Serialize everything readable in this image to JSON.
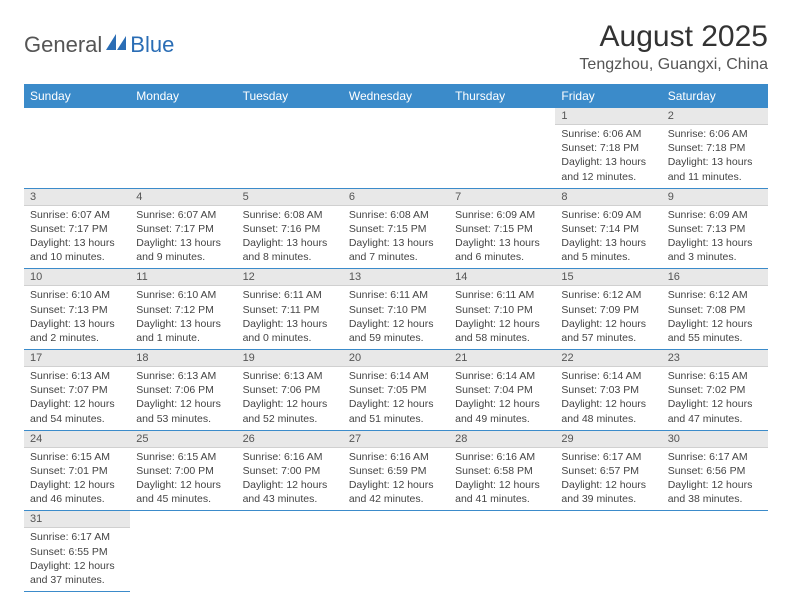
{
  "logo": {
    "part1": "General",
    "part2": "Blue"
  },
  "title": "August 2025",
  "location": "Tengzhou, Guangxi, China",
  "colors": {
    "header_bg": "#3b8bca",
    "header_text": "#ffffff",
    "daynum_bg": "#e8e8e8",
    "row_border": "#3b8bca",
    "logo_blue": "#2a6db5"
  },
  "weekdays": [
    "Sunday",
    "Monday",
    "Tuesday",
    "Wednesday",
    "Thursday",
    "Friday",
    "Saturday"
  ],
  "first_weekday_index": 5,
  "days": [
    {
      "n": 1,
      "sunrise": "6:06 AM",
      "sunset": "7:18 PM",
      "daylight": "13 hours and 12 minutes."
    },
    {
      "n": 2,
      "sunrise": "6:06 AM",
      "sunset": "7:18 PM",
      "daylight": "13 hours and 11 minutes."
    },
    {
      "n": 3,
      "sunrise": "6:07 AM",
      "sunset": "7:17 PM",
      "daylight": "13 hours and 10 minutes."
    },
    {
      "n": 4,
      "sunrise": "6:07 AM",
      "sunset": "7:17 PM",
      "daylight": "13 hours and 9 minutes."
    },
    {
      "n": 5,
      "sunrise": "6:08 AM",
      "sunset": "7:16 PM",
      "daylight": "13 hours and 8 minutes."
    },
    {
      "n": 6,
      "sunrise": "6:08 AM",
      "sunset": "7:15 PM",
      "daylight": "13 hours and 7 minutes."
    },
    {
      "n": 7,
      "sunrise": "6:09 AM",
      "sunset": "7:15 PM",
      "daylight": "13 hours and 6 minutes."
    },
    {
      "n": 8,
      "sunrise": "6:09 AM",
      "sunset": "7:14 PM",
      "daylight": "13 hours and 5 minutes."
    },
    {
      "n": 9,
      "sunrise": "6:09 AM",
      "sunset": "7:13 PM",
      "daylight": "13 hours and 3 minutes."
    },
    {
      "n": 10,
      "sunrise": "6:10 AM",
      "sunset": "7:13 PM",
      "daylight": "13 hours and 2 minutes."
    },
    {
      "n": 11,
      "sunrise": "6:10 AM",
      "sunset": "7:12 PM",
      "daylight": "13 hours and 1 minute."
    },
    {
      "n": 12,
      "sunrise": "6:11 AM",
      "sunset": "7:11 PM",
      "daylight": "13 hours and 0 minutes."
    },
    {
      "n": 13,
      "sunrise": "6:11 AM",
      "sunset": "7:10 PM",
      "daylight": "12 hours and 59 minutes."
    },
    {
      "n": 14,
      "sunrise": "6:11 AM",
      "sunset": "7:10 PM",
      "daylight": "12 hours and 58 minutes."
    },
    {
      "n": 15,
      "sunrise": "6:12 AM",
      "sunset": "7:09 PM",
      "daylight": "12 hours and 57 minutes."
    },
    {
      "n": 16,
      "sunrise": "6:12 AM",
      "sunset": "7:08 PM",
      "daylight": "12 hours and 55 minutes."
    },
    {
      "n": 17,
      "sunrise": "6:13 AM",
      "sunset": "7:07 PM",
      "daylight": "12 hours and 54 minutes."
    },
    {
      "n": 18,
      "sunrise": "6:13 AM",
      "sunset": "7:06 PM",
      "daylight": "12 hours and 53 minutes."
    },
    {
      "n": 19,
      "sunrise": "6:13 AM",
      "sunset": "7:06 PM",
      "daylight": "12 hours and 52 minutes."
    },
    {
      "n": 20,
      "sunrise": "6:14 AM",
      "sunset": "7:05 PM",
      "daylight": "12 hours and 51 minutes."
    },
    {
      "n": 21,
      "sunrise": "6:14 AM",
      "sunset": "7:04 PM",
      "daylight": "12 hours and 49 minutes."
    },
    {
      "n": 22,
      "sunrise": "6:14 AM",
      "sunset": "7:03 PM",
      "daylight": "12 hours and 48 minutes."
    },
    {
      "n": 23,
      "sunrise": "6:15 AM",
      "sunset": "7:02 PM",
      "daylight": "12 hours and 47 minutes."
    },
    {
      "n": 24,
      "sunrise": "6:15 AM",
      "sunset": "7:01 PM",
      "daylight": "12 hours and 46 minutes."
    },
    {
      "n": 25,
      "sunrise": "6:15 AM",
      "sunset": "7:00 PM",
      "daylight": "12 hours and 45 minutes."
    },
    {
      "n": 26,
      "sunrise": "6:16 AM",
      "sunset": "7:00 PM",
      "daylight": "12 hours and 43 minutes."
    },
    {
      "n": 27,
      "sunrise": "6:16 AM",
      "sunset": "6:59 PM",
      "daylight": "12 hours and 42 minutes."
    },
    {
      "n": 28,
      "sunrise": "6:16 AM",
      "sunset": "6:58 PM",
      "daylight": "12 hours and 41 minutes."
    },
    {
      "n": 29,
      "sunrise": "6:17 AM",
      "sunset": "6:57 PM",
      "daylight": "12 hours and 39 minutes."
    },
    {
      "n": 30,
      "sunrise": "6:17 AM",
      "sunset": "6:56 PM",
      "daylight": "12 hours and 38 minutes."
    },
    {
      "n": 31,
      "sunrise": "6:17 AM",
      "sunset": "6:55 PM",
      "daylight": "12 hours and 37 minutes."
    }
  ],
  "labels": {
    "sunrise": "Sunrise:",
    "sunset": "Sunset:",
    "daylight": "Daylight:"
  }
}
